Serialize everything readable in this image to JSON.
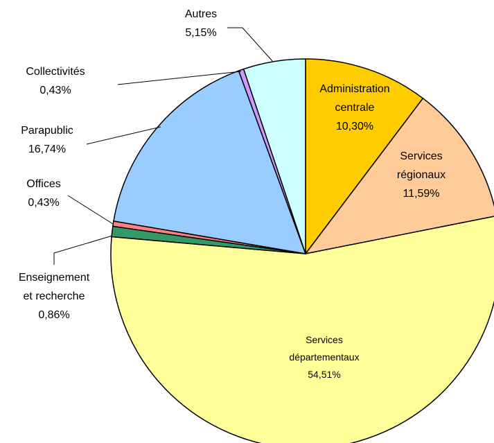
{
  "chart_data": {
    "type": "pie",
    "categories": [
      "Administration\ncentrale",
      "Services\nrégionaux",
      "Services\ndépartementaux",
      "Enseignement\net recherche",
      "Offices",
      "Parapublic",
      "Collectivités",
      "Autres"
    ],
    "values": [
      10.3,
      11.59,
      54.51,
      0.86,
      0.43,
      16.74,
      0.43,
      5.15
    ],
    "value_labels": [
      "10,30%",
      "11,59%",
      "54,51%",
      "0,86%",
      "0,43%",
      "16,74%",
      "0,43%",
      "5,15%"
    ],
    "colors": [
      "#ffcc00",
      "#ffcc99",
      "#ffff99",
      "#339966",
      "#ff8080",
      "#99ccff",
      "#cc99ff",
      "#ccffff"
    ]
  }
}
